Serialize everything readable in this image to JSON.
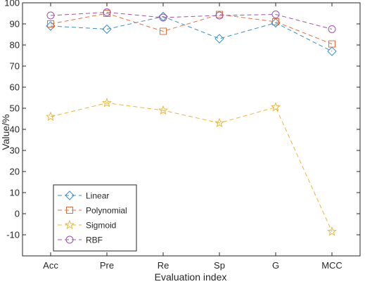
{
  "chart_data": {
    "type": "line",
    "title": "",
    "xlabel": "Evaluation index",
    "ylabel": "Value/%",
    "categories": [
      "Acc",
      "Pre",
      "Re",
      "Sp",
      "G",
      "MCC"
    ],
    "ylim": [
      -20,
      100
    ],
    "yticks": [
      -10,
      0,
      10,
      20,
      30,
      40,
      50,
      60,
      70,
      80,
      90,
      100
    ],
    "grid": false,
    "legend_position": "bottom-left",
    "series": [
      {
        "name": "Linear",
        "color": "#3a8fc4",
        "marker": "diamond",
        "values": [
          89,
          87.5,
          93.5,
          83,
          90.5,
          77
        ]
      },
      {
        "name": "Polynomial",
        "color": "#e0703c",
        "marker": "square",
        "values": [
          90,
          95,
          86.5,
          94.5,
          91,
          80.5
        ]
      },
      {
        "name": "Sigmoid",
        "color": "#e8b83a",
        "marker": "star",
        "values": [
          46,
          52.5,
          49,
          43,
          50.5,
          -8.5
        ]
      },
      {
        "name": "RBF",
        "color": "#9b55a8",
        "marker": "circle",
        "values": [
          94,
          95.5,
          93,
          94,
          94.5,
          87.5
        ]
      }
    ]
  }
}
